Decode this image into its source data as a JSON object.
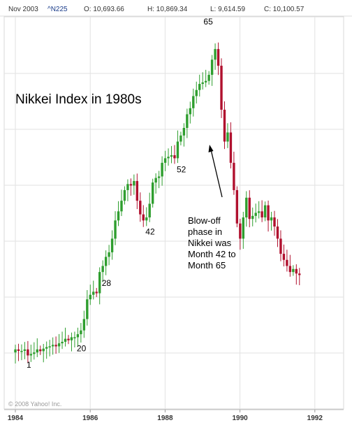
{
  "header": {
    "date": "Nov 2003",
    "symbol": "^N225",
    "open": "O: 10,693.66",
    "high": "H: 10,869.34",
    "low": "L: 9,614.59",
    "close": "C: 10,100.57"
  },
  "copyright": "© 2008 Yahoo! Inc.",
  "chart_data": {
    "type": "candlestick",
    "title": "Nikkei Index in 1980s",
    "xlabel": "",
    "ylabel": "",
    "x_ticks": [
      "1984",
      "1986",
      "1988",
      "1990",
      "1992"
    ],
    "x_range": [
      1984.0,
      1992.75
    ],
    "y_axis_labels_shown": false,
    "grid": true,
    "colors": {
      "up": "#2e9e2e",
      "down": "#b0102e",
      "grid": "#e2e2e2",
      "arrow": "#000000"
    },
    "series": [
      {
        "interval": "monthly",
        "closes": [
          0.97,
          0.96,
          0.96,
          0.97,
          0.93,
          0.94,
          0.95,
          0.97,
          0.958,
          0.975,
          0.985,
          0.99,
          1.0,
          0.99,
          1.01,
          1.02,
          1.04,
          1.03,
          1.05,
          1.05,
          1.07,
          1.095,
          1.17,
          1.3,
          1.33,
          1.35,
          1.34,
          1.48,
          1.52,
          1.58,
          1.61,
          1.7,
          1.82,
          1.88,
          1.95,
          2.02,
          2.06,
          2.05,
          2.08,
          1.95,
          1.86,
          1.82,
          1.84,
          1.93,
          2.07,
          2.1,
          2.11,
          2.2,
          2.23,
          2.24,
          2.25,
          2.23,
          2.34,
          2.38,
          2.43,
          2.52,
          2.56,
          2.64,
          2.68,
          2.72,
          2.73,
          2.74,
          2.78,
          2.88,
          2.95,
          2.84,
          2.55,
          2.34,
          2.4,
          2.2,
          2.02,
          1.8,
          1.7,
          1.84,
          1.97,
          1.83,
          1.85,
          1.87,
          1.88,
          1.84,
          1.92,
          1.82,
          1.84,
          1.78,
          1.7,
          1.6,
          1.56,
          1.52,
          1.48,
          1.5,
          1.47,
          1.46
        ]
      }
    ],
    "annotations": [
      {
        "label": "1",
        "month": 1
      },
      {
        "label": "20",
        "month": 20
      },
      {
        "label": "28",
        "month": 28
      },
      {
        "label": "42",
        "month": 42
      },
      {
        "label": "52",
        "month": 52
      },
      {
        "label": "65",
        "month": 65
      }
    ],
    "note_lines": [
      "Blow-off",
      "phase in",
      "Nikkei was",
      "Month 42 to",
      "Month 65"
    ]
  }
}
